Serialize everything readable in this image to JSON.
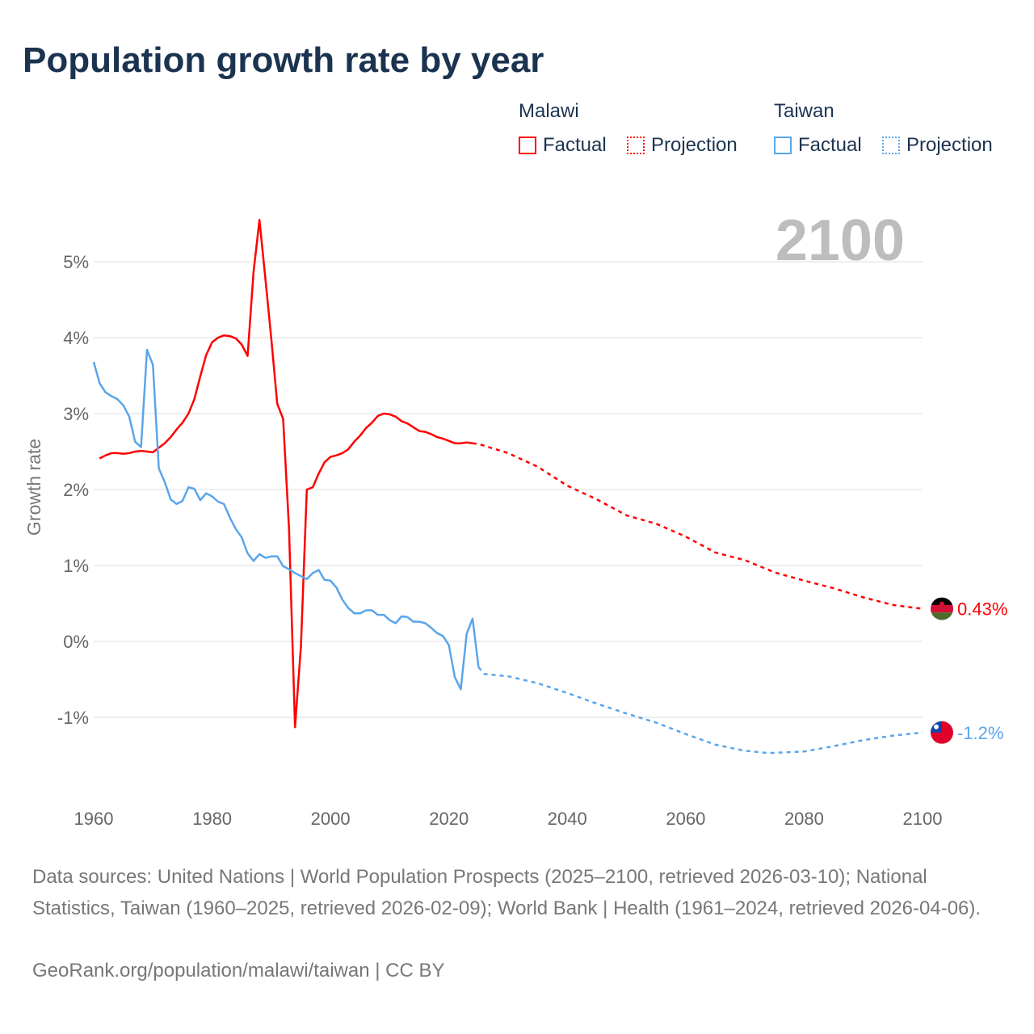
{
  "title": "Population growth rate by year",
  "legend": {
    "groups": [
      {
        "name": "Malawi",
        "factual": "Factual",
        "projection": "Projection",
        "color": "#ff0000"
      },
      {
        "name": "Taiwan",
        "factual": "Factual",
        "projection": "Projection",
        "color": "#5aa5ec"
      }
    ]
  },
  "footer": {
    "sources": "Data sources: United Nations | World Population Prospects (2025–2100, retrieved 2026-03-10); National Statistics, Taiwan (1960–2025, retrieved 2026-02-09); World Bank | Health (1961–2024, retrieved 2026-04-06).",
    "credit": "GeoRank.org/population/malawi/taiwan | CC BY"
  },
  "chart_data": {
    "type": "line",
    "title": "Population growth rate by year",
    "xlabel": "",
    "ylabel": "Growth rate",
    "year_label": "2100",
    "xlim": [
      1960,
      2100
    ],
    "ylim": [
      -1.9,
      5.8
    ],
    "xticks": [
      "1960",
      "1980",
      "2000",
      "2020",
      "2040",
      "2060",
      "2080",
      "2100"
    ],
    "xtick_values": [
      1960,
      1980,
      2000,
      2020,
      2040,
      2060,
      2080,
      2100
    ],
    "yticks": [
      "-1%",
      "0%",
      "1%",
      "2%",
      "3%",
      "4%",
      "5%"
    ],
    "ytick_values": [
      -1,
      0,
      1,
      2,
      3,
      4,
      5
    ],
    "grid": true,
    "legend_position": "top-right",
    "series": [
      {
        "name": "Malawi",
        "color": "#ff0000",
        "end_label": "0.43%",
        "factual": {
          "x": [
            1961,
            1962,
            1963,
            1964,
            1965,
            1966,
            1967,
            1968,
            1969,
            1970,
            1971,
            1972,
            1973,
            1974,
            1975,
            1976,
            1977,
            1978,
            1979,
            1980,
            1981,
            1982,
            1983,
            1984,
            1985,
            1986,
            1987,
            1988,
            1989,
            1990,
            1991,
            1992,
            1993,
            1994,
            1995,
            1996,
            1997,
            1998,
            1999,
            2000,
            2001,
            2002,
            2003,
            2004,
            2005,
            2006,
            2007,
            2008,
            2009,
            2010,
            2011,
            2012,
            2013,
            2014,
            2015,
            2016,
            2017,
            2018,
            2019,
            2020,
            2021,
            2022,
            2023,
            2024
          ],
          "y": [
            2.41,
            2.45,
            2.48,
            2.48,
            2.47,
            2.48,
            2.5,
            2.51,
            2.5,
            2.49,
            2.55,
            2.61,
            2.69,
            2.79,
            2.88,
            3.0,
            3.19,
            3.49,
            3.77,
            3.94,
            4.0,
            4.03,
            4.02,
            3.99,
            3.91,
            3.76,
            4.87,
            5.55,
            4.78,
            3.98,
            3.13,
            2.93,
            1.48,
            -1.13,
            -0.07,
            2.0,
            2.03,
            2.21,
            2.36,
            2.43,
            2.45,
            2.48,
            2.53,
            2.63,
            2.71,
            2.81,
            2.88,
            2.97,
            3.0,
            2.99,
            2.96,
            2.9,
            2.87,
            2.82,
            2.77,
            2.76,
            2.73,
            2.69,
            2.67,
            2.64,
            2.61,
            2.61,
            2.62,
            2.61
          ]
        },
        "projection": {
          "x": [
            2024,
            2025,
            2030,
            2035,
            2040,
            2045,
            2050,
            2055,
            2060,
            2065,
            2070,
            2075,
            2080,
            2085,
            2090,
            2095,
            2100
          ],
          "y": [
            2.61,
            2.6,
            2.48,
            2.3,
            2.05,
            1.87,
            1.66,
            1.55,
            1.38,
            1.17,
            1.07,
            0.91,
            0.8,
            0.7,
            0.58,
            0.48,
            0.43
          ]
        }
      },
      {
        "name": "Taiwan",
        "color": "#5aa5ec",
        "end_label": "-1.2%",
        "factual": {
          "x": [
            1960,
            1961,
            1962,
            1963,
            1964,
            1965,
            1966,
            1967,
            1968,
            1969,
            1970,
            1971,
            1972,
            1973,
            1974,
            1975,
            1976,
            1977,
            1978,
            1979,
            1980,
            1981,
            1982,
            1983,
            1984,
            1985,
            1986,
            1987,
            1988,
            1989,
            1990,
            1991,
            1992,
            1993,
            1994,
            1995,
            1996,
            1997,
            1998,
            1999,
            2000,
            2001,
            2002,
            2003,
            2004,
            2005,
            2006,
            2007,
            2008,
            2009,
            2010,
            2011,
            2012,
            2013,
            2014,
            2015,
            2016,
            2017,
            2018,
            2019,
            2020,
            2021,
            2022,
            2023,
            2024,
            2025
          ],
          "y": [
            3.68,
            3.4,
            3.28,
            3.23,
            3.19,
            3.11,
            2.96,
            2.63,
            2.56,
            3.84,
            3.64,
            2.28,
            2.1,
            1.87,
            1.81,
            1.85,
            2.03,
            2.01,
            1.86,
            1.95,
            1.91,
            1.84,
            1.81,
            1.63,
            1.48,
            1.37,
            1.16,
            1.06,
            1.15,
            1.1,
            1.12,
            1.12,
            0.99,
            0.95,
            0.9,
            0.86,
            0.82,
            0.9,
            0.94,
            0.81,
            0.8,
            0.71,
            0.55,
            0.44,
            0.37,
            0.37,
            0.41,
            0.41,
            0.35,
            0.35,
            0.28,
            0.24,
            0.33,
            0.32,
            0.26,
            0.26,
            0.24,
            0.18,
            0.11,
            0.07,
            -0.05,
            -0.47,
            -0.63,
            0.1,
            0.3,
            -0.34
          ]
        },
        "projection": {
          "x": [
            2025,
            2026,
            2030,
            2035,
            2040,
            2045,
            2050,
            2055,
            2060,
            2065,
            2070,
            2074,
            2080,
            2085,
            2090,
            2095,
            2100
          ],
          "y": [
            -0.34,
            -0.43,
            -0.46,
            -0.55,
            -0.68,
            -0.82,
            -0.95,
            -1.07,
            -1.22,
            -1.36,
            -1.44,
            -1.47,
            -1.45,
            -1.38,
            -1.3,
            -1.24,
            -1.2
          ]
        }
      }
    ]
  }
}
